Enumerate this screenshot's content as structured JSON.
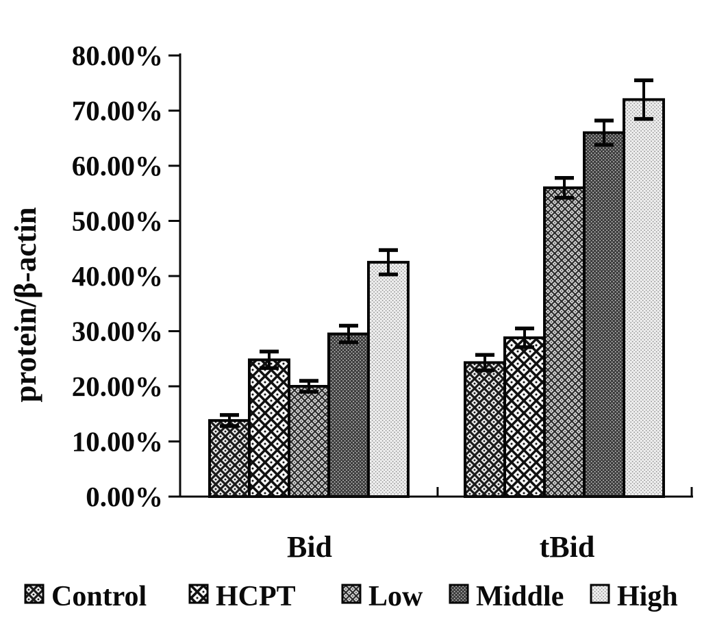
{
  "figure": {
    "background_color": "#ffffff",
    "ink_color": "#0a0a0a"
  },
  "chart_data": {
    "type": "bar",
    "title": "",
    "xlabel": "",
    "ylabel": "protein/β-actin",
    "categories": [
      "Bid",
      "tBid"
    ],
    "series": [
      {
        "name": "Control",
        "pattern": "diamond-crosshatch-medium",
        "values": [
          13.8,
          24.3
        ],
        "errors": [
          1.0,
          1.4
        ]
      },
      {
        "name": "HCPT",
        "pattern": "diamond-crosshatch-large",
        "values": [
          24.8,
          28.8
        ],
        "errors": [
          1.5,
          1.7
        ]
      },
      {
        "name": "Low",
        "pattern": "diamond-crosshatch-fine",
        "values": [
          20.0,
          56.0
        ],
        "errors": [
          1.0,
          1.8
        ]
      },
      {
        "name": "Middle",
        "pattern": "dark-dotted",
        "values": [
          29.5,
          66.0
        ],
        "errors": [
          1.5,
          2.2
        ]
      },
      {
        "name": "High",
        "pattern": "light-dotted",
        "values": [
          42.5,
          72.0
        ],
        "errors": [
          2.2,
          3.5
        ]
      }
    ],
    "error_bars": true,
    "ylim": [
      0,
      80
    ],
    "ytick_step": 10,
    "ytick_labels": [
      "0.00%",
      "10.00%",
      "20.00%",
      "30.00%",
      "40.00%",
      "50.00%",
      "60.00%",
      "70.00%",
      "80.00%"
    ],
    "grid": false,
    "legend_position": "bottom"
  }
}
